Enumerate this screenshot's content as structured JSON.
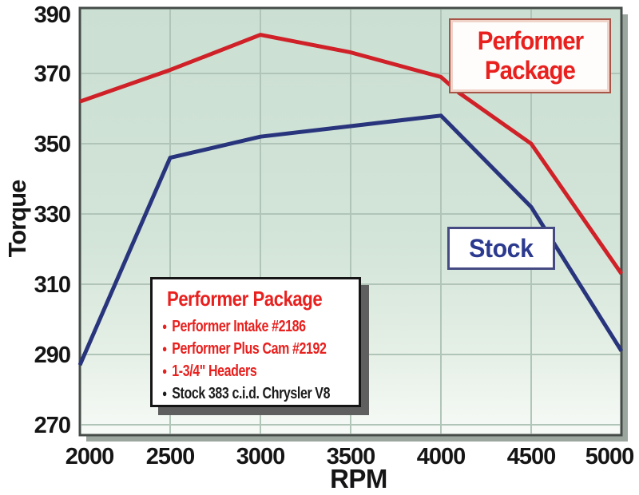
{
  "chart_data": {
    "type": "line",
    "title": "",
    "xlabel": "RPM",
    "ylabel": "Torque",
    "x_ticks": [
      2000,
      2500,
      3000,
      3500,
      4000,
      4500,
      5000
    ],
    "y_ticks": [
      390,
      370,
      350,
      330,
      310,
      290,
      270
    ],
    "xlim": [
      2000,
      5000
    ],
    "ylim": [
      267,
      389
    ],
    "grid": true,
    "legend_position": "bottom-left box; series labels boxed on plot",
    "series": [
      {
        "name": "Performer Package",
        "color": "#cf2127",
        "x": [
          2000,
          2500,
          3000,
          3500,
          4000,
          4100,
          4500,
          5000
        ],
        "values": [
          362,
          371,
          381,
          376,
          369,
          364.5,
          350,
          313
        ]
      },
      {
        "name": "Stock",
        "color": "#28347c",
        "x": [
          2000,
          2500,
          3000,
          3500,
          4000,
          4500,
          5000
        ],
        "values": [
          287,
          346,
          352,
          355,
          358,
          332,
          291
        ]
      }
    ]
  },
  "labels": {
    "performer_box_line1": "Performer",
    "performer_box_line2": "Package",
    "stock_box": "Stock"
  },
  "legend": {
    "title": "Performer Package",
    "items": [
      {
        "text": "Performer Intake #2186",
        "color": "red"
      },
      {
        "text": "Performer Plus Cam #2192",
        "color": "red"
      },
      {
        "text": "1-3/4\" Headers",
        "color": "red"
      },
      {
        "text": "Stock 383 c.i.d. Chrysler V8",
        "color": "black"
      }
    ]
  },
  "colors": {
    "performer_curve": "#cf2127",
    "stock_curve": "#28347c",
    "red_text": "#e8201e",
    "stock_text": "#2b3a8e",
    "black_text": "#1c1c1c",
    "grid_line": "#b0c5b8",
    "plot_bg_top": "#cbdfd3",
    "plot_bg_bottom": "#f7faf7",
    "frame_border": "#454c48",
    "frame_shadow": "#9aa69e",
    "tick_text": "#151515"
  }
}
